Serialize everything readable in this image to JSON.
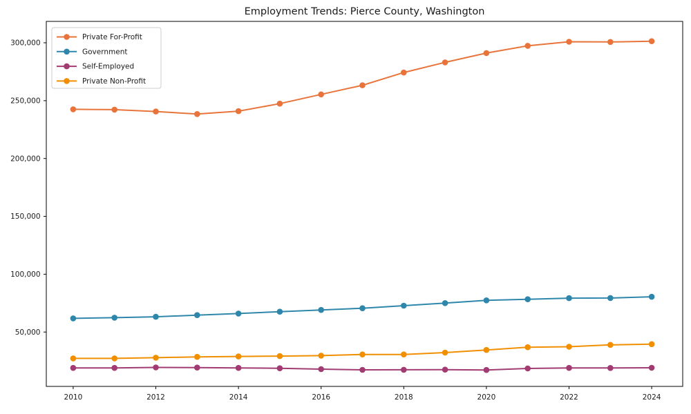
{
  "chart_data": {
    "type": "line",
    "title": "Employment Trends: Pierce County, Washington",
    "xlabel": "",
    "ylabel": "",
    "x": [
      2010,
      2011,
      2012,
      2013,
      2014,
      2015,
      2016,
      2017,
      2018,
      2019,
      2020,
      2021,
      2022,
      2023,
      2024
    ],
    "series": [
      {
        "name": "Private For-Profit",
        "color": "#E8743B",
        "values": [
          242500,
          242200,
          240600,
          238400,
          240900,
          247400,
          255400,
          263300,
          274300,
          283100,
          291100,
          297400,
          300900,
          300700,
          301400
        ]
      },
      {
        "name": "Government",
        "color": "#2E86AB",
        "values": [
          61800,
          62400,
          63200,
          64600,
          66000,
          67600,
          69100,
          70600,
          72800,
          75000,
          77400,
          78300,
          79300,
          79400,
          80500
        ]
      },
      {
        "name": "Self-Employed",
        "color": "#A23B72",
        "values": [
          19000,
          19000,
          19400,
          19300,
          19000,
          18700,
          17900,
          17300,
          17400,
          17500,
          17200,
          18500,
          19000,
          18900,
          19100
        ]
      },
      {
        "name": "Private Non-Profit",
        "color": "#F18F01",
        "values": [
          27200,
          27200,
          27800,
          28500,
          28900,
          29200,
          29600,
          30600,
          30600,
          32200,
          34500,
          36900,
          37300,
          38900,
          39500
        ]
      }
    ],
    "xticks": [
      2010,
      2012,
      2014,
      2016,
      2018,
      2020,
      2022,
      2024
    ],
    "xtick_labels": [
      "2010",
      "2012",
      "2014",
      "2016",
      "2018",
      "2020",
      "2022",
      "2024"
    ],
    "yticks": [
      50000,
      100000,
      150000,
      200000,
      250000,
      300000
    ],
    "ytick_labels": [
      "50,000",
      "100,000",
      "150,000",
      "200,000",
      "250,000",
      "300,000"
    ],
    "xlim": [
      2009.35,
      2024.75
    ],
    "ylim": [
      3000,
      318500
    ],
    "grid": false,
    "legend_position": "upper left"
  }
}
